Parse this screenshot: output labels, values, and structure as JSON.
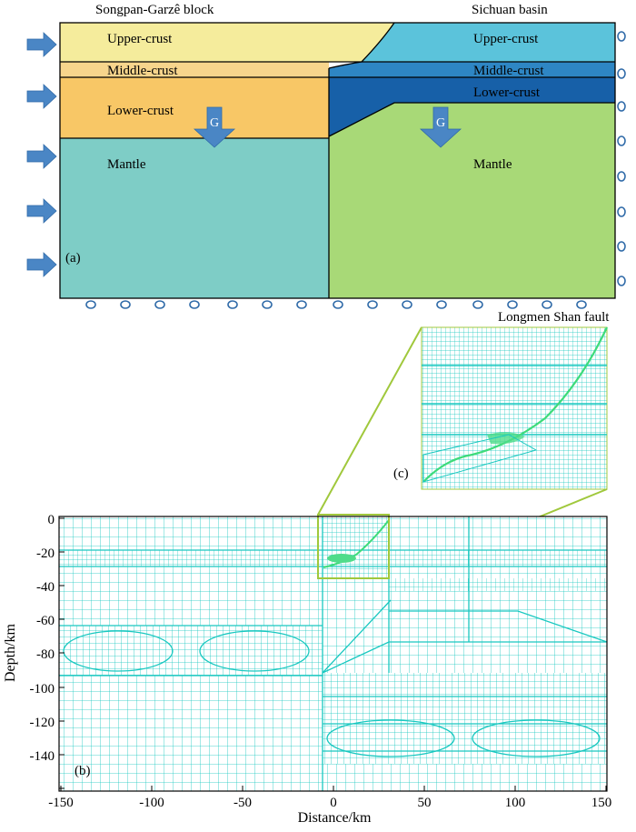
{
  "panel_a": {
    "title_left": "Songpan-Garzê block",
    "title_right": "Sichuan basin",
    "left_layers": {
      "upper": "Upper-crust",
      "middle": "Middle-crust",
      "lower": "Lower-crust",
      "mantle": "Mantle"
    },
    "right_layers": {
      "upper": "Upper-crust",
      "middle": "Middle-crust",
      "lower": "Lower-crust",
      "mantle": "Mantle"
    },
    "gravity_label": "G",
    "panel_label": "(a)"
  },
  "panel_b": {
    "panel_label": "(b)",
    "xlabel": "Distance/km",
    "ylabel": "Depth/km",
    "x_ticks": [
      "-150",
      "-100",
      "-50",
      "0",
      "50",
      "100",
      "150"
    ],
    "y_ticks": [
      "0",
      "-20",
      "-40",
      "-60",
      "-80",
      "-100",
      "-120",
      "-140"
    ]
  },
  "panel_c": {
    "panel_label": "(c)",
    "fault_label": "Longmen Shan fault"
  },
  "colors": {
    "upper_left": "#f5ec9c",
    "middle_left": "#f7d58c",
    "lower_left": "#f8c766",
    "mantle_left": "#7ecdc6",
    "upper_right": "#5bc3db",
    "middle_right": "#2e86c4",
    "lower_right": "#1760a8",
    "mantle_right": "#a8d977",
    "arrow": "#4a86c5",
    "mesh": "#19c8c0",
    "zoom": "#a0c83c"
  }
}
